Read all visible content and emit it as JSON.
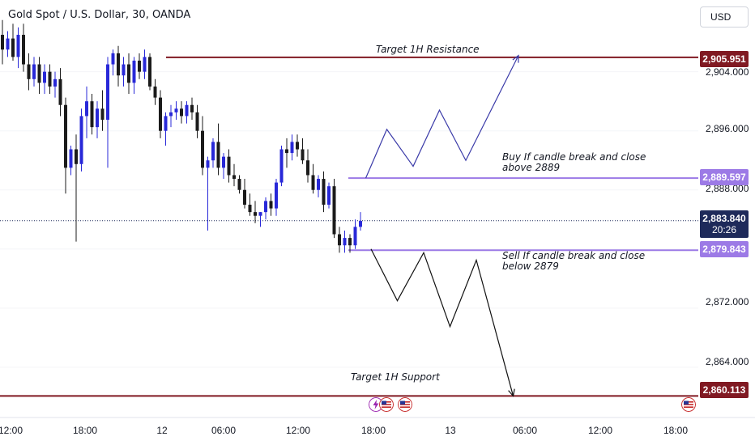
{
  "symbol_title": "Gold Spot / U.S. Dollar, 30, OANDA",
  "currency": "USD",
  "colors": {
    "bull": "#2828d8",
    "bear": "#1b1b1b",
    "resistance": "#801922",
    "buy_sell_level": "#9c7ae6",
    "current_price": "#1e2a5a",
    "path_up": "#3a3aa8",
    "path_down": "#111111"
  },
  "chart_data": {
    "type": "candlestick",
    "ylim": [
      2857,
      2910
    ],
    "y_ticks": [
      "2,904.000",
      "2,896.000",
      "2,888.000",
      "2,880.000",
      "2,872.000",
      "2,864.000"
    ],
    "x_ticks": [
      "12:00",
      "18:00",
      "12",
      "06:00",
      "12:00",
      "18:00",
      "13",
      "06:00",
      "12:00",
      "18:00"
    ],
    "candles": [
      [
        2909.0,
        2911.0,
        2905.0,
        2907.0
      ],
      [
        2907.0,
        2909.5,
        2906.0,
        2908.5
      ],
      [
        2908.5,
        2910.5,
        2905.5,
        2906.0
      ],
      [
        2906.0,
        2910.0,
        2904.5,
        2909.0
      ],
      [
        2909.0,
        2910.5,
        2904.0,
        2905.0
      ],
      [
        2905.0,
        2906.5,
        2901.5,
        2903.0
      ],
      [
        2903.0,
        2906.0,
        2902.0,
        2905.0
      ],
      [
        2905.0,
        2906.0,
        2901.0,
        2902.5
      ],
      [
        2902.5,
        2905.0,
        2901.0,
        2904.0
      ],
      [
        2904.0,
        2905.0,
        2901.0,
        2902.0
      ],
      [
        2902.0,
        2904.0,
        2900.5,
        2903.0
      ],
      [
        2903.0,
        2904.5,
        2898.0,
        2899.5
      ],
      [
        2899.5,
        2900.5,
        2887.5,
        2891.0
      ],
      [
        2891.0,
        2894.0,
        2890.0,
        2893.5
      ],
      [
        2893.5,
        2895.5,
        2881.0,
        2891.5
      ],
      [
        2891.5,
        2899.0,
        2890.5,
        2898.0
      ],
      [
        2898.0,
        2902.0,
        2895.0,
        2900.0
      ],
      [
        2900.0,
        2901.0,
        2895.5,
        2896.5
      ],
      [
        2896.5,
        2900.0,
        2895.0,
        2899.0
      ],
      [
        2899.0,
        2901.5,
        2896.0,
        2897.5
      ],
      [
        2897.5,
        2906.0,
        2891.0,
        2905.0
      ],
      [
        2905.0,
        2907.0,
        2903.5,
        2906.5
      ],
      [
        2906.5,
        2907.5,
        2902.0,
        2903.5
      ],
      [
        2903.5,
        2906.0,
        2902.0,
        2905.0
      ],
      [
        2905.0,
        2906.5,
        2901.0,
        2902.5
      ],
      [
        2902.5,
        2906.0,
        2901.0,
        2905.5
      ],
      [
        2905.5,
        2906.5,
        2903.0,
        2904.0
      ],
      [
        2904.0,
        2907.0,
        2903.0,
        2906.0
      ],
      [
        2906.0,
        2906.5,
        2901.5,
        2902.0
      ],
      [
        2902.0,
        2903.0,
        2899.5,
        2900.5
      ],
      [
        2900.5,
        2901.5,
        2895.0,
        2896.0
      ],
      [
        2896.0,
        2898.5,
        2894.0,
        2898.0
      ],
      [
        2898.0,
        2899.5,
        2896.5,
        2898.5
      ],
      [
        2898.5,
        2900.0,
        2897.5,
        2899.0
      ],
      [
        2899.0,
        2900.0,
        2897.0,
        2898.0
      ],
      [
        2898.0,
        2900.0,
        2897.0,
        2899.5
      ],
      [
        2899.5,
        2900.5,
        2897.5,
        2898.5
      ],
      [
        2898.5,
        2899.5,
        2895.0,
        2896.0
      ],
      [
        2896.0,
        2898.0,
        2890.0,
        2891.0
      ],
      [
        2891.0,
        2892.5,
        2882.5,
        2892.0
      ],
      [
        2892.0,
        2895.0,
        2891.0,
        2894.5
      ],
      [
        2894.5,
        2897.0,
        2890.0,
        2891.0
      ],
      [
        2891.0,
        2893.0,
        2889.5,
        2892.5
      ],
      [
        2892.5,
        2893.5,
        2889.0,
        2890.0
      ],
      [
        2890.0,
        2891.5,
        2888.5,
        2889.5
      ],
      [
        2889.5,
        2890.0,
        2887.5,
        2888.0
      ],
      [
        2888.0,
        2889.5,
        2885.5,
        2886.0
      ],
      [
        2886.0,
        2887.5,
        2884.5,
        2885.0
      ],
      [
        2885.0,
        2886.5,
        2883.5,
        2884.5
      ],
      [
        2884.5,
        2885.0,
        2883.0,
        2885.0
      ],
      [
        2885.0,
        2887.0,
        2884.0,
        2886.5
      ],
      [
        2886.5,
        2887.5,
        2884.5,
        2885.5
      ],
      [
        2885.5,
        2889.5,
        2884.5,
        2889.0
      ],
      [
        2889.0,
        2894.0,
        2888.5,
        2893.5
      ],
      [
        2893.5,
        2895.0,
        2891.0,
        2893.0
      ],
      [
        2893.0,
        2895.5,
        2892.0,
        2894.5
      ],
      [
        2894.5,
        2895.5,
        2892.5,
        2893.5
      ],
      [
        2893.5,
        2895.0,
        2891.5,
        2892.0
      ],
      [
        2892.0,
        2893.5,
        2889.0,
        2890.0
      ],
      [
        2890.0,
        2891.5,
        2887.5,
        2888.0
      ],
      [
        2888.0,
        2890.0,
        2887.0,
        2889.5
      ],
      [
        2889.5,
        2890.5,
        2885.0,
        2886.0
      ],
      [
        2886.0,
        2889.0,
        2885.5,
        2888.5
      ],
      [
        2888.5,
        2889.5,
        2881.5,
        2882.0
      ],
      [
        2882.0,
        2883.0,
        2879.5,
        2880.5
      ],
      [
        2880.5,
        2882.5,
        2879.5,
        2881.5
      ],
      [
        2881.5,
        2882.0,
        2879.5,
        2880.5
      ],
      [
        2880.5,
        2884.0,
        2880.0,
        2883.0
      ],
      [
        2883.0,
        2885.0,
        2882.5,
        2883.8
      ]
    ],
    "levels": [
      {
        "name": "resistance",
        "price": 2905.951,
        "label": "2,905.951",
        "annotation": "Target 1H Resistance"
      },
      {
        "name": "buy",
        "price": 2889.597,
        "label": "2,889.597",
        "annotation": [
          "Buy If candle break and close",
          "above 2889"
        ]
      },
      {
        "name": "sell",
        "price": 2879.843,
        "label": "2,879.843",
        "annotation": [
          "Sell If candle break and close",
          "below 2879"
        ]
      },
      {
        "name": "support",
        "price": 2860.113,
        "label": "2,860.113",
        "annotation": "Target 1H Support"
      }
    ],
    "current_price": {
      "price": 2883.84,
      "label": "2,883.840",
      "countdown": "20:26"
    },
    "path_up": [
      [
        69,
        2889.6
      ],
      [
        73,
        2896.2
      ],
      [
        78,
        2891.2
      ],
      [
        83,
        2898.8
      ],
      [
        88,
        2892.0
      ],
      [
        98,
        2906.2
      ]
    ],
    "path_down": [
      [
        70,
        2880.0
      ],
      [
        75,
        2873.0
      ],
      [
        80,
        2879.5
      ],
      [
        85,
        2869.5
      ],
      [
        90,
        2878.5
      ],
      [
        97,
        2860.1
      ]
    ]
  }
}
